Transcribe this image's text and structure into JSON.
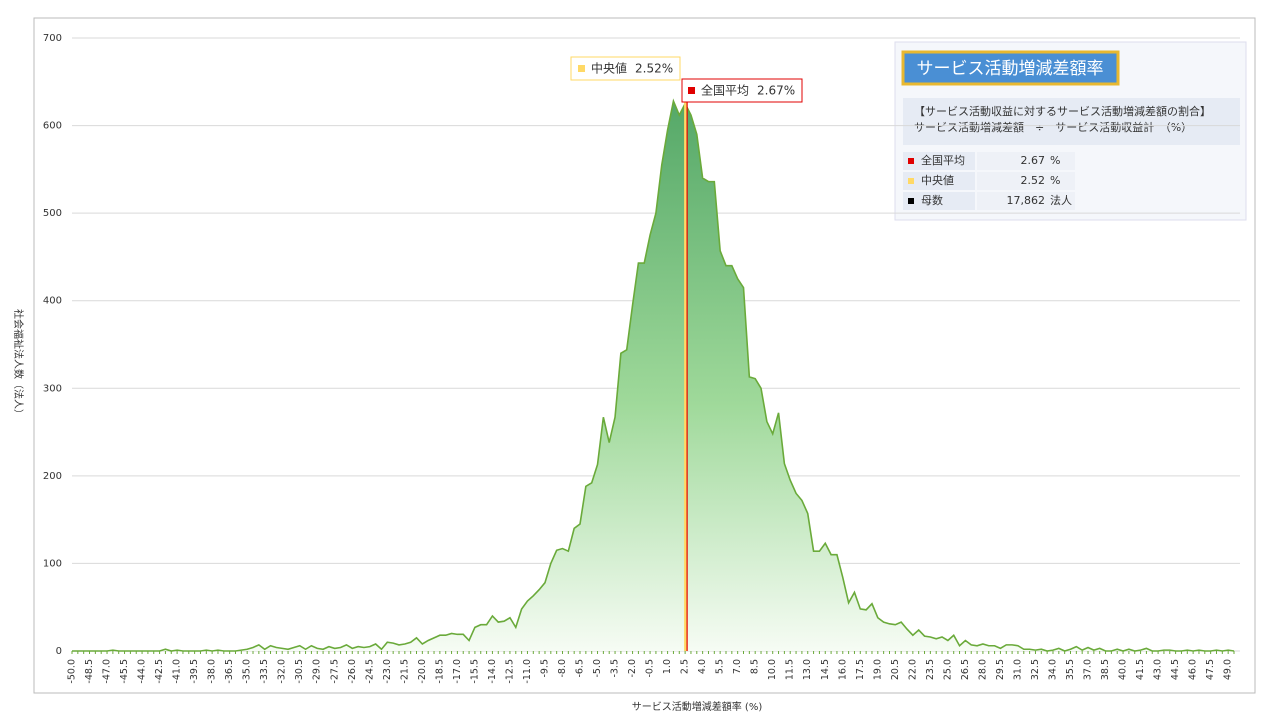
{
  "chart_data": {
    "type": "area",
    "x_label": "サービス活動増減差額率 (%)",
    "y_label": "社会福祉法人数（法人）",
    "xlim": [
      -50,
      49.5
    ],
    "categories": [
      "-50.0",
      null,
      null,
      "-48.5",
      null,
      null,
      "-47.0",
      null,
      null,
      "-45.5",
      null,
      null,
      "-44.0",
      null,
      null,
      "-42.5",
      null,
      null,
      "-41.0",
      null,
      null,
      "-39.5",
      null,
      null,
      "-38.0",
      null,
      null,
      "-36.5",
      null,
      null,
      "-35.0",
      null,
      null,
      "-33.5",
      null,
      null,
      "-32.0",
      null,
      null,
      "-30.5",
      null,
      null,
      "-29.0",
      null,
      null,
      "-27.5",
      null,
      null,
      "-26.0",
      null,
      null,
      "-24.5",
      null,
      null,
      "-23.0",
      null,
      null,
      "-21.5",
      null,
      null,
      "-20.0",
      null,
      null,
      "-18.5",
      null,
      null,
      "-17.0",
      null,
      null,
      "-15.5",
      null,
      null,
      "-14.0",
      null,
      null,
      "-12.5",
      null,
      null,
      "-11.0",
      null,
      null,
      "-9.5",
      null,
      null,
      "-8.0",
      null,
      null,
      "-6.5",
      null,
      null,
      "-5.0",
      null,
      null,
      "-3.5",
      null,
      null,
      "-2.0",
      null,
      null,
      "-0.5",
      null,
      null,
      "1.0",
      null,
      null,
      "2.5",
      null,
      null,
      "4.0",
      null,
      null,
      "5.5",
      null,
      null,
      "7.0",
      null,
      null,
      "8.5",
      null,
      null,
      "10.0",
      null,
      null,
      "11.5",
      null,
      null,
      "13.0",
      null,
      null,
      "14.5",
      null,
      null,
      "16.0",
      null,
      null,
      "17.5",
      null,
      null,
      "19.0",
      null,
      null,
      "20.5",
      null,
      null,
      "22.0",
      null,
      null,
      "23.5",
      null,
      null,
      "25.0",
      null,
      null,
      "26.5",
      null,
      null,
      "28.0",
      null,
      null,
      "29.5",
      null,
      null,
      "31.0",
      null,
      null,
      "32.5",
      null,
      null,
      "34.0",
      null,
      null,
      "35.5",
      null,
      null,
      "37.0",
      null,
      null,
      "38.5",
      null,
      null,
      "40.0",
      null,
      null,
      "41.5",
      null,
      null,
      "43.0",
      null,
      null,
      "44.5",
      null,
      null,
      "46.0",
      null,
      null,
      "47.5",
      null,
      null,
      "49.0",
      null
    ],
    "values": [
      0,
      0,
      0,
      0,
      0,
      0,
      0,
      1,
      0,
      0,
      0,
      0,
      0,
      0,
      0,
      0,
      2,
      0,
      1,
      0,
      0,
      0,
      0,
      1,
      0,
      1,
      0,
      0,
      0,
      1,
      2,
      4,
      7,
      2,
      6,
      4,
      3,
      2,
      4,
      6,
      2,
      6,
      3,
      2,
      5,
      3,
      4,
      7,
      3,
      5,
      4,
      5,
      8,
      2,
      10,
      9,
      7,
      8,
      10,
      15,
      8,
      12,
      15,
      18,
      18,
      20,
      19,
      19,
      12,
      27,
      30,
      30,
      40,
      33,
      34,
      38,
      27,
      48,
      57,
      63,
      70,
      78,
      100,
      115,
      117,
      114,
      140,
      145,
      188,
      192,
      213,
      267,
      238,
      267,
      340,
      344,
      395,
      443,
      443,
      475,
      500,
      555,
      595,
      628,
      612,
      625,
      612,
      590,
      540,
      536,
      536,
      457,
      440,
      440,
      425,
      415,
      313,
      311,
      300,
      262,
      248,
      272,
      214,
      195,
      180,
      172,
      157,
      114,
      114,
      123,
      110,
      110,
      84,
      55,
      67,
      48,
      47,
      54,
      38,
      33,
      31,
      30,
      33,
      25,
      18,
      24,
      17,
      16,
      14,
      16,
      12,
      18,
      6,
      12,
      7,
      6,
      8,
      6,
      6,
      3,
      7,
      7,
      6,
      2,
      2,
      1,
      2,
      0,
      1,
      3,
      0,
      2,
      5,
      1,
      4,
      1,
      3,
      0,
      0,
      2,
      0,
      2,
      0,
      1,
      3,
      0,
      0,
      1,
      1,
      0,
      0,
      1,
      0,
      1,
      0,
      0,
      1,
      0,
      1,
      0
    ],
    "color": "#6aaa3a",
    "ylim": [
      0,
      700
    ],
    "yticks": [
      0,
      100,
      200,
      300,
      400,
      500,
      600,
      700
    ],
    "grid": true,
    "median": {
      "name": "中央値",
      "value": 2.52,
      "label": "2.52%",
      "color": "#ffd966"
    },
    "mean": {
      "name": "全国平均",
      "value": 2.67,
      "label": "2.67%",
      "color": "#e00000"
    }
  },
  "info_panel": {
    "title": "サービス活動増減差額率",
    "description": [
      "【サービス活動収益に対するサービス活動増減差額の割合】",
      "サービス活動増減差額　÷　サービス活動収益計　（%）"
    ],
    "rows": [
      {
        "label": "全国平均",
        "value": "2.67",
        "unit": "%",
        "color": "#e00000"
      },
      {
        "label": "中央値",
        "value": "2.52",
        "unit": "%",
        "color": "#ffd966"
      },
      {
        "label": "母数",
        "value": "17,862",
        "unit": "法人",
        "color": "#000000"
      }
    ]
  }
}
